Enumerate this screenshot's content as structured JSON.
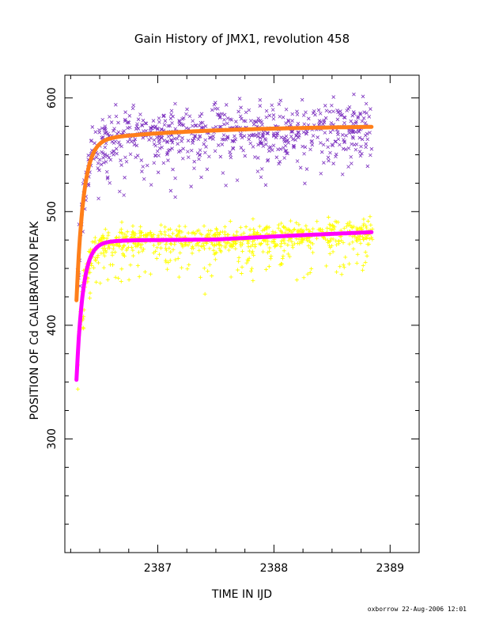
{
  "chart_data": {
    "type": "scatter",
    "title": "Gain History of JMX1, revolution 458",
    "xlabel": "TIME IN IJD",
    "ylabel": "POSITION OF Cd CALIBRATION PEAK",
    "xlim": [
      2386.2,
      2389.25
    ],
    "ylim": [
      200,
      620
    ],
    "x_ticks": [
      "2387",
      "2388",
      "2389"
    ],
    "y_ticks": [
      "300",
      "400",
      "500",
      "600"
    ],
    "x_tick_values": [
      2387,
      2388,
      2389
    ],
    "y_tick_values": [
      300,
      400,
      500,
      600
    ],
    "grid": false,
    "legend": "none",
    "series": [
      {
        "marker": "x",
        "color": "#7b2fbf",
        "x_range": [
          2386.3,
          2388.85
        ],
        "pattern": "scattered measurements around upper fit, ~530-600",
        "approx_points": [
          [
            2386.35,
            470
          ],
          [
            2386.4,
            520
          ],
          [
            2386.5,
            555
          ],
          [
            2386.8,
            560
          ],
          [
            2387.2,
            565
          ],
          [
            2387.5,
            570
          ],
          [
            2388.0,
            568
          ],
          [
            2388.3,
            572
          ],
          [
            2388.6,
            575
          ],
          [
            2388.85,
            575
          ]
        ]
      },
      {
        "marker": "line",
        "color": "#ff7f1a",
        "pattern": "fit curve of upper data",
        "approx_points": [
          [
            2386.3,
            435
          ],
          [
            2386.4,
            520
          ],
          [
            2386.5,
            552
          ],
          [
            2386.6,
            560
          ],
          [
            2387.0,
            565
          ],
          [
            2387.5,
            568
          ],
          [
            2388.0,
            570
          ],
          [
            2388.5,
            572
          ],
          [
            2388.85,
            574
          ]
        ]
      },
      {
        "marker": "+",
        "color": "#ffff00",
        "x_range": [
          2386.3,
          2388.85
        ],
        "pattern": "scattered measurements around lower fit, ~435-490",
        "approx_points": [
          [
            2386.3,
            370
          ],
          [
            2386.4,
            440
          ],
          [
            2386.5,
            460
          ],
          [
            2386.8,
            468
          ],
          [
            2387.2,
            470
          ],
          [
            2387.5,
            468
          ],
          [
            2388.0,
            472
          ],
          [
            2388.4,
            476
          ],
          [
            2388.85,
            480
          ]
        ]
      },
      {
        "marker": "line",
        "color": "#ff00ff",
        "pattern": "fit curve of lower data",
        "approx_points": [
          [
            2386.3,
            360
          ],
          [
            2386.35,
            400
          ],
          [
            2386.45,
            445
          ],
          [
            2386.6,
            465
          ],
          [
            2387.0,
            469
          ],
          [
            2387.5,
            470
          ],
          [
            2388.0,
            473
          ],
          [
            2388.5,
            477
          ],
          [
            2388.85,
            480
          ]
        ]
      }
    ]
  },
  "footer": {
    "credit": "oxborrow 22-Aug-2006 12:01"
  }
}
